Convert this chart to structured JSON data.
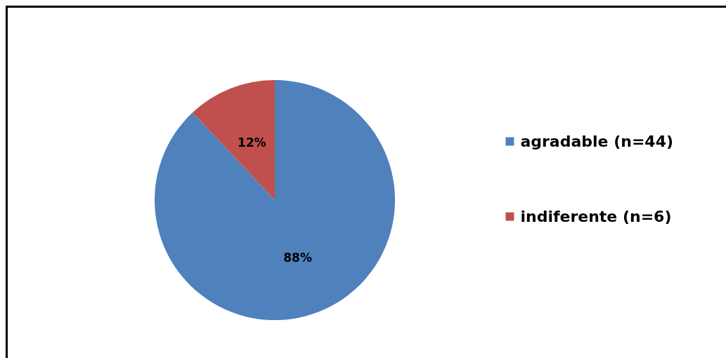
{
  "chart_data": {
    "type": "pie",
    "categories": [
      "agradable (n=44)",
      "indiferente (n=6)"
    ],
    "values": [
      88,
      12
    ],
    "colors": [
      "#4f81bd",
      "#c0504d"
    ],
    "value_labels": [
      "88%",
      "12%"
    ],
    "legend": "right"
  }
}
